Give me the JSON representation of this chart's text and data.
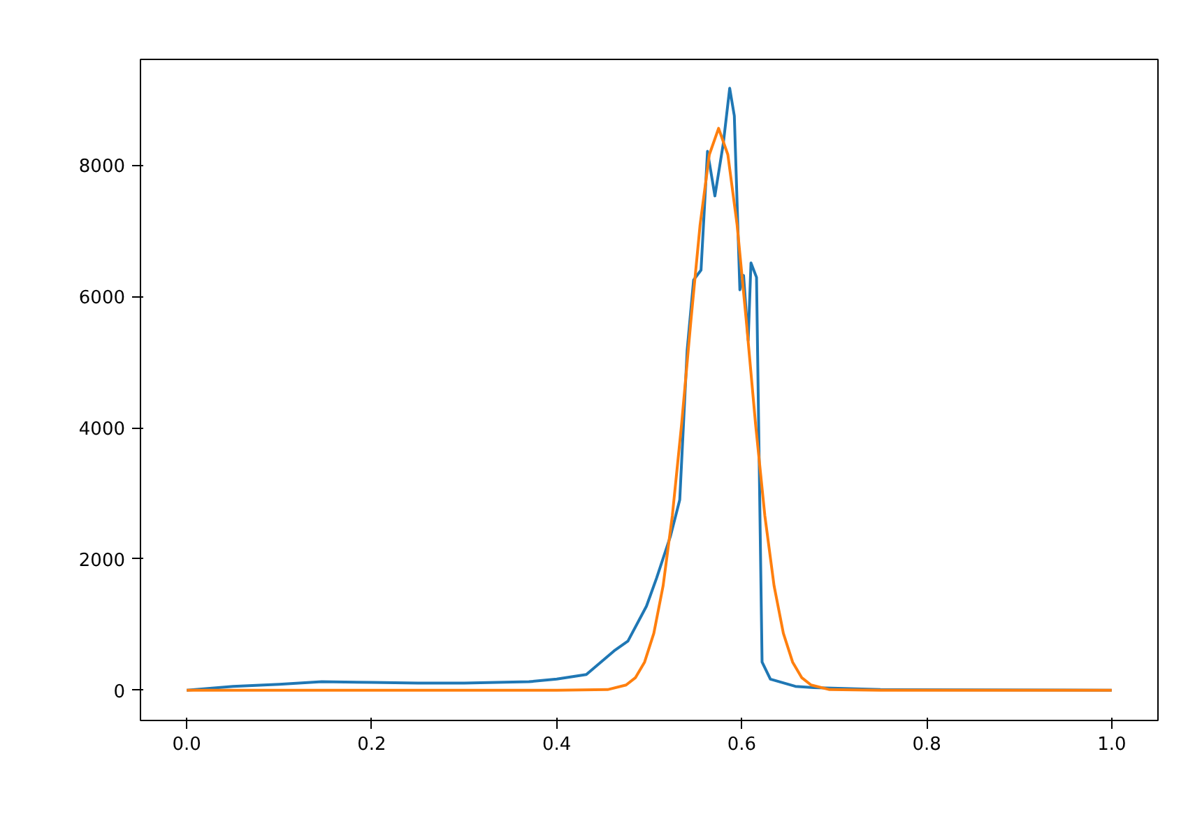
{
  "chart_data": {
    "type": "line",
    "xlim": [
      -0.05,
      1.05
    ],
    "ylim": [
      -460,
      9610
    ],
    "xticks": [
      {
        "value": 0,
        "label": "0.0"
      },
      {
        "value": 0.2,
        "label": "0.2"
      },
      {
        "value": 0.4,
        "label": "0.4"
      },
      {
        "value": 0.6,
        "label": "0.6"
      },
      {
        "value": 0.8,
        "label": "0.8"
      },
      {
        "value": 1,
        "label": "1.0"
      }
    ],
    "yticks": [
      0,
      2000,
      4000,
      6000,
      8000
    ],
    "grid": false,
    "marker": "none",
    "line_style": "solid",
    "series": [
      {
        "color": "#1f77b4",
        "x": [
          0,
          0.05,
          0.1,
          0.146,
          0.2,
          0.25,
          0.3,
          0.37,
          0.4,
          0.432,
          0.462,
          0.477,
          0.497,
          0.508,
          0.523,
          0.533,
          0.541,
          0.548,
          0.556,
          0.563,
          0.571,
          0.58,
          0.587,
          0.592,
          0.598,
          0.602,
          0.607,
          0.61,
          0.616,
          0.622,
          0.631,
          0.658,
          0.678,
          0.75,
          1.0
        ],
        "values": [
          0,
          60,
          90,
          130,
          120,
          110,
          110,
          130,
          170,
          240,
          600,
          750,
          1280,
          1710,
          2350,
          2900,
          5180,
          6250,
          6400,
          8210,
          7530,
          8320,
          9170,
          8750,
          6100,
          6320,
          5330,
          6510,
          6290,
          430,
          170,
          60,
          40,
          10,
          0
        ]
      },
      {
        "color": "#ff7f0e",
        "x": [
          0,
          0.2,
          0.4,
          0.455,
          0.475,
          0.485,
          0.495,
          0.505,
          0.515,
          0.525,
          0.535,
          0.545,
          0.555,
          0.565,
          0.575,
          0.585,
          0.595,
          0.605,
          0.615,
          0.625,
          0.635,
          0.645,
          0.655,
          0.665,
          0.675,
          0.695,
          0.75,
          1.0
        ],
        "values": [
          0,
          0,
          0,
          10,
          80,
          190,
          430,
          870,
          1590,
          2660,
          4050,
          5620,
          7090,
          8160,
          8560,
          8160,
          7090,
          5620,
          4050,
          2660,
          1590,
          870,
          430,
          190,
          80,
          10,
          0,
          0
        ]
      }
    ]
  }
}
